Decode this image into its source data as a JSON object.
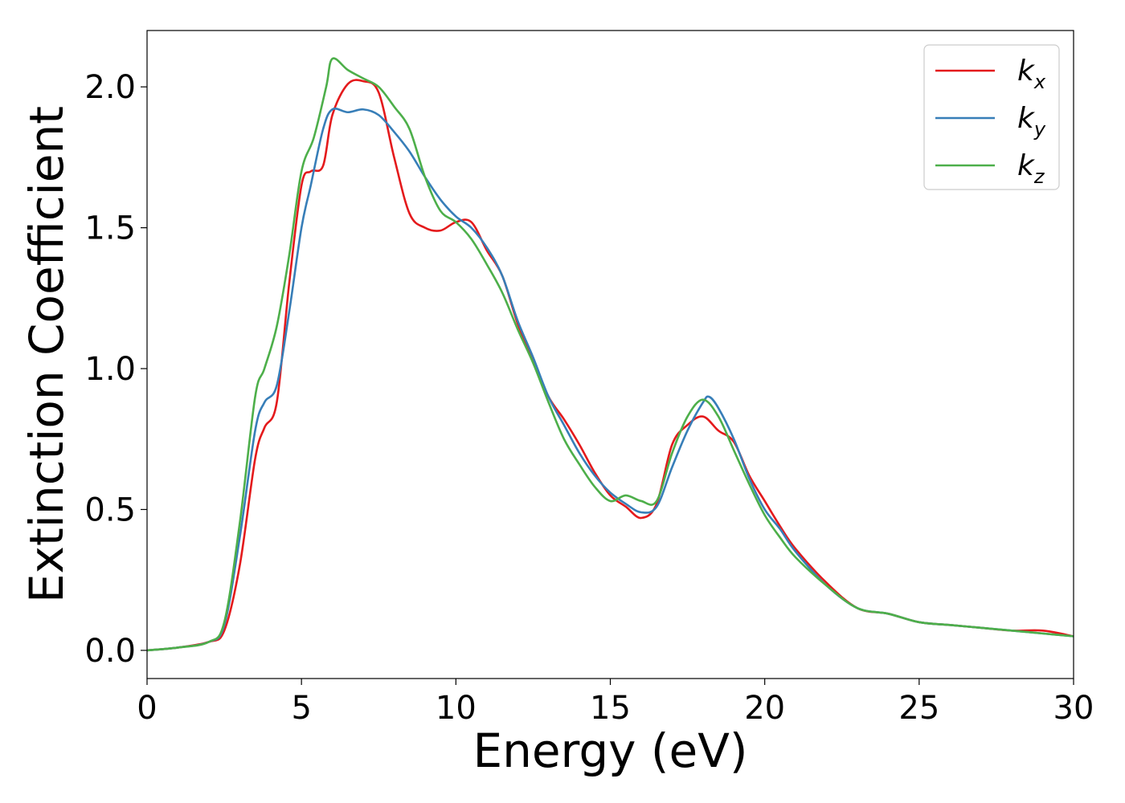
{
  "chart_data": {
    "type": "line",
    "title": "",
    "xlabel": "Energy (eV)",
    "ylabel": "Extinction Coefficient",
    "xlim": [
      0,
      30
    ],
    "ylim": [
      -0.1,
      2.2
    ],
    "xticks": [
      0,
      5,
      10,
      15,
      20,
      25,
      30
    ],
    "xtick_labels": [
      "0",
      "5",
      "10",
      "15",
      "20",
      "25",
      "30"
    ],
    "yticks": [
      0.0,
      0.5,
      1.0,
      1.5,
      2.0
    ],
    "ytick_labels": [
      "0.0",
      "0.5",
      "1.0",
      "1.5",
      "2.0"
    ],
    "grid": false,
    "legend_position": "top-right",
    "series": [
      {
        "name": "k_x",
        "label_main": "k",
        "label_sub": "x",
        "color": "#e41a1c",
        "x": [
          0,
          1,
          2,
          2.5,
          3,
          3.5,
          3.8,
          4.2,
          4.6,
          5.0,
          5.3,
          5.7,
          6.0,
          6.5,
          7.0,
          7.5,
          8.0,
          8.5,
          9.0,
          9.5,
          10.0,
          10.5,
          11.0,
          11.5,
          12.0,
          12.5,
          13.0,
          13.5,
          14.0,
          14.5,
          15.0,
          15.5,
          16.0,
          16.5,
          17.0,
          17.5,
          18.0,
          18.5,
          19.0,
          19.5,
          20.0,
          20.5,
          21.0,
          22.0,
          23.0,
          24.0,
          25.0,
          26.0,
          27.0,
          28.0,
          29.0,
          30.0
        ],
        "y": [
          0.0,
          0.01,
          0.03,
          0.07,
          0.3,
          0.68,
          0.79,
          0.88,
          1.3,
          1.65,
          1.7,
          1.72,
          1.9,
          2.01,
          2.02,
          1.98,
          1.75,
          1.55,
          1.5,
          1.49,
          1.52,
          1.52,
          1.42,
          1.33,
          1.16,
          1.03,
          0.9,
          0.82,
          0.73,
          0.63,
          0.55,
          0.51,
          0.47,
          0.52,
          0.73,
          0.8,
          0.83,
          0.78,
          0.74,
          0.62,
          0.53,
          0.44,
          0.36,
          0.24,
          0.15,
          0.13,
          0.1,
          0.09,
          0.08,
          0.07,
          0.07,
          0.05
        ]
      },
      {
        "name": "k_y",
        "label_main": "k",
        "label_sub": "y",
        "color": "#377eb8",
        "x": [
          0,
          1,
          2,
          2.5,
          3,
          3.5,
          3.8,
          4.2,
          4.6,
          5.0,
          5.3,
          5.7,
          6.0,
          6.5,
          7.0,
          7.5,
          8.0,
          8.5,
          9.0,
          9.5,
          10.0,
          10.5,
          11.0,
          11.5,
          12.0,
          12.5,
          13.0,
          13.5,
          14.0,
          14.5,
          15.0,
          15.5,
          16.0,
          16.5,
          17.0,
          17.5,
          18.0,
          18.2,
          18.5,
          19.0,
          19.5,
          20.0,
          20.5,
          21.0,
          22.0,
          23.0,
          24.0,
          25.0,
          26.0,
          27.0,
          28.0,
          29.0,
          30.0
        ],
        "y": [
          0.0,
          0.01,
          0.03,
          0.09,
          0.4,
          0.78,
          0.88,
          0.94,
          1.2,
          1.5,
          1.65,
          1.85,
          1.92,
          1.91,
          1.92,
          1.9,
          1.84,
          1.77,
          1.68,
          1.6,
          1.54,
          1.5,
          1.43,
          1.33,
          1.17,
          1.04,
          0.9,
          0.8,
          0.7,
          0.62,
          0.56,
          0.52,
          0.49,
          0.51,
          0.65,
          0.78,
          0.88,
          0.9,
          0.86,
          0.75,
          0.61,
          0.5,
          0.43,
          0.35,
          0.23,
          0.15,
          0.13,
          0.1,
          0.09,
          0.08,
          0.07,
          0.06,
          0.05
        ]
      },
      {
        "name": "k_z",
        "label_main": "k",
        "label_sub": "z",
        "color": "#4daf4a",
        "x": [
          0,
          1,
          2,
          2.5,
          3,
          3.5,
          3.8,
          4.2,
          4.6,
          5.0,
          5.4,
          5.8,
          6.0,
          6.5,
          7.0,
          7.5,
          8.0,
          8.5,
          9.0,
          9.5,
          10.0,
          10.5,
          11.0,
          11.5,
          12.0,
          12.5,
          13.0,
          13.5,
          14.0,
          14.5,
          15.0,
          15.5,
          16.0,
          16.5,
          17.0,
          17.5,
          18.0,
          18.5,
          19.0,
          19.5,
          20.0,
          20.5,
          21.0,
          22.0,
          23.0,
          24.0,
          25.0,
          26.0,
          27.0,
          28.0,
          29.0,
          30.0
        ],
        "y": [
          0.0,
          0.01,
          0.03,
          0.1,
          0.45,
          0.9,
          1.0,
          1.15,
          1.4,
          1.7,
          1.82,
          2.0,
          2.1,
          2.06,
          2.03,
          2.0,
          1.93,
          1.85,
          1.68,
          1.56,
          1.52,
          1.46,
          1.37,
          1.27,
          1.14,
          1.02,
          0.88,
          0.75,
          0.66,
          0.58,
          0.53,
          0.55,
          0.53,
          0.53,
          0.7,
          0.83,
          0.89,
          0.83,
          0.71,
          0.59,
          0.48,
          0.4,
          0.33,
          0.23,
          0.15,
          0.13,
          0.1,
          0.09,
          0.08,
          0.07,
          0.06,
          0.05
        ]
      }
    ]
  }
}
